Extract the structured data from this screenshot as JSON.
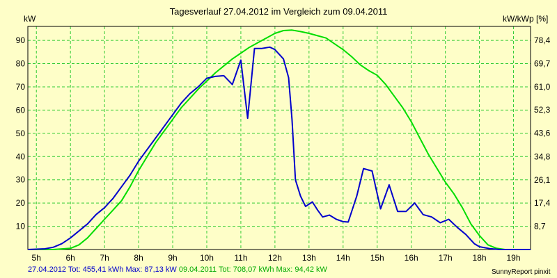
{
  "chart_data": {
    "type": "line",
    "title": "Tagesverlauf 27.04.2012 im Vergleich zum 09.04.2011",
    "ylabel_left": "kW",
    "ylabel_right": "kW/kWp [%]",
    "x_range": [
      4.75,
      19.5
    ],
    "ylim": [
      0,
      96
    ],
    "y_ticks": [
      10,
      20,
      30,
      40,
      50,
      60,
      70,
      80,
      90
    ],
    "x_ticks": [
      "5h",
      "6h",
      "7h",
      "8h",
      "9h",
      "10h",
      "11h",
      "12h",
      "13h",
      "14h",
      "15h",
      "16h",
      "17h",
      "18h",
      "19h"
    ],
    "right_ticks": [
      {
        "value": 8.7,
        "label": "8,7"
      },
      {
        "value": 17.4,
        "label": "17,4"
      },
      {
        "value": 26.1,
        "label": "26,1"
      },
      {
        "value": 34.8,
        "label": "34,8"
      },
      {
        "value": 43.6,
        "label": "43,6"
      },
      {
        "value": 52.3,
        "label": "52,3"
      },
      {
        "value": 61.0,
        "label": "61,0"
      },
      {
        "value": 69.7,
        "label": "69,7"
      },
      {
        "value": 78.4,
        "label": "78,4"
      }
    ],
    "right_max_percent": 83.6,
    "grid": true,
    "series": [
      {
        "name": "27.04.2012",
        "color": "#0000cc",
        "points": [
          [
            4.75,
            0
          ],
          [
            5.25,
            0.3
          ],
          [
            5.5,
            1
          ],
          [
            5.75,
            2.5
          ],
          [
            6,
            5
          ],
          [
            6.25,
            8
          ],
          [
            6.5,
            11
          ],
          [
            6.75,
            15
          ],
          [
            7,
            18
          ],
          [
            7.25,
            22
          ],
          [
            7.5,
            27
          ],
          [
            7.75,
            32
          ],
          [
            8,
            38
          ],
          [
            8.25,
            43
          ],
          [
            8.5,
            48
          ],
          [
            8.75,
            53
          ],
          [
            9,
            58
          ],
          [
            9.25,
            63
          ],
          [
            9.5,
            67
          ],
          [
            9.75,
            70
          ],
          [
            10,
            73.7
          ],
          [
            10.25,
            74.5
          ],
          [
            10.5,
            74.8
          ],
          [
            10.75,
            71
          ],
          [
            11,
            81.5
          ],
          [
            11.2,
            56.5
          ],
          [
            11.4,
            86.5
          ],
          [
            11.6,
            86.5
          ],
          [
            11.85,
            87.1
          ],
          [
            12,
            86
          ],
          [
            12.25,
            82
          ],
          [
            12.4,
            74
          ],
          [
            12.5,
            56
          ],
          [
            12.6,
            30
          ],
          [
            12.75,
            23
          ],
          [
            12.9,
            18.5
          ],
          [
            13.1,
            20.5
          ],
          [
            13.25,
            17
          ],
          [
            13.4,
            14
          ],
          [
            13.6,
            14.8
          ],
          [
            13.8,
            13
          ],
          [
            14,
            12
          ],
          [
            14.15,
            11.8
          ],
          [
            14.4,
            23
          ],
          [
            14.6,
            34.8
          ],
          [
            14.85,
            33.8
          ],
          [
            15.1,
            17.5
          ],
          [
            15.35,
            27.8
          ],
          [
            15.6,
            16.4
          ],
          [
            15.85,
            16.4
          ],
          [
            16.1,
            20
          ],
          [
            16.35,
            15
          ],
          [
            16.6,
            14
          ],
          [
            16.85,
            11.5
          ],
          [
            17.1,
            13
          ],
          [
            17.35,
            9.5
          ],
          [
            17.6,
            6.5
          ],
          [
            17.85,
            2.5
          ],
          [
            18,
            1.2
          ],
          [
            18.3,
            0.4
          ],
          [
            18.6,
            0
          ],
          [
            19.5,
            0
          ]
        ]
      },
      {
        "name": "09.04.2011",
        "color": "#00dd00",
        "points": [
          [
            4.75,
            0
          ],
          [
            5.5,
            0
          ],
          [
            6,
            0.5
          ],
          [
            6.25,
            2
          ],
          [
            6.5,
            5
          ],
          [
            6.75,
            9
          ],
          [
            7,
            13
          ],
          [
            7.25,
            17
          ],
          [
            7.5,
            21
          ],
          [
            7.75,
            27
          ],
          [
            8,
            34
          ],
          [
            8.25,
            40
          ],
          [
            8.5,
            46
          ],
          [
            8.75,
            51
          ],
          [
            9,
            56
          ],
          [
            9.25,
            61
          ],
          [
            9.5,
            65
          ],
          [
            9.75,
            69
          ],
          [
            10,
            72.5
          ],
          [
            10.25,
            76
          ],
          [
            10.5,
            79
          ],
          [
            10.75,
            82
          ],
          [
            11,
            84.5
          ],
          [
            11.25,
            87
          ],
          [
            11.5,
            89
          ],
          [
            11.75,
            91
          ],
          [
            12,
            93
          ],
          [
            12.25,
            94.2
          ],
          [
            12.5,
            94.4
          ],
          [
            12.75,
            93.8
          ],
          [
            13,
            93
          ],
          [
            13.25,
            92
          ],
          [
            13.5,
            91
          ],
          [
            13.75,
            88.5
          ],
          [
            14,
            86
          ],
          [
            14.25,
            83
          ],
          [
            14.5,
            79.5
          ],
          [
            14.75,
            77
          ],
          [
            15,
            75
          ],
          [
            15.25,
            71
          ],
          [
            15.5,
            66
          ],
          [
            15.75,
            61
          ],
          [
            16,
            55
          ],
          [
            16.25,
            48
          ],
          [
            16.5,
            41
          ],
          [
            16.75,
            35
          ],
          [
            17,
            29
          ],
          [
            17.25,
            24
          ],
          [
            17.5,
            18
          ],
          [
            17.75,
            11
          ],
          [
            18,
            6
          ],
          [
            18.25,
            2
          ],
          [
            18.5,
            0.5
          ],
          [
            18.75,
            0
          ],
          [
            19.5,
            0
          ]
        ]
      }
    ]
  },
  "footer": {
    "s1": "27.04.2012 Tot: 455,41 kWh Max: 87,13 kW",
    "s2": "09.04.2011 Tot: 708,07 kWh Max: 94,42 kW"
  },
  "credit": "SunnyReport pinxit"
}
